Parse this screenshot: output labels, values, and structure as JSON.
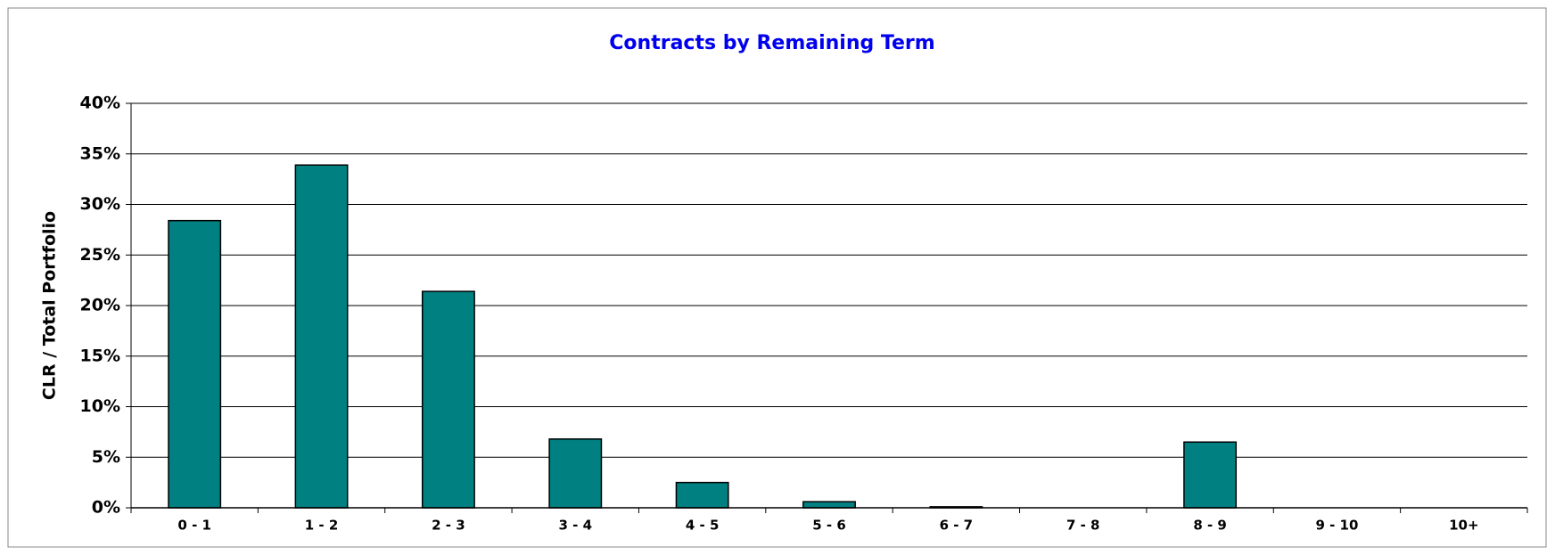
{
  "chart_data": {
    "type": "bar",
    "title": "Contracts by Remaining Term",
    "y_label": "CLR / Total Portfolio",
    "categories": [
      "0 - 1",
      "1 - 2",
      "2 - 3",
      "3 - 4",
      "4 - 5",
      "5 - 6",
      "6 - 7",
      "7 - 8",
      "8 - 9",
      "9 - 10",
      "10+"
    ],
    "values": [
      28.4,
      33.9,
      21.4,
      6.8,
      2.5,
      0.6,
      0.1,
      0,
      6.5,
      0,
      0
    ],
    "color": "#008080",
    "ylim": [
      0,
      40
    ],
    "yticks": [
      {
        "value": 0,
        "label": "0%"
      },
      {
        "value": 5,
        "label": "5%"
      },
      {
        "value": 10,
        "label": "10%"
      },
      {
        "value": 15,
        "label": "15%"
      },
      {
        "value": 20,
        "label": "20%"
      },
      {
        "value": 25,
        "label": "25%"
      },
      {
        "value": 30,
        "label": "30%"
      },
      {
        "value": 35,
        "label": "35%"
      },
      {
        "value": 40,
        "label": "40%"
      }
    ],
    "grid": true
  }
}
